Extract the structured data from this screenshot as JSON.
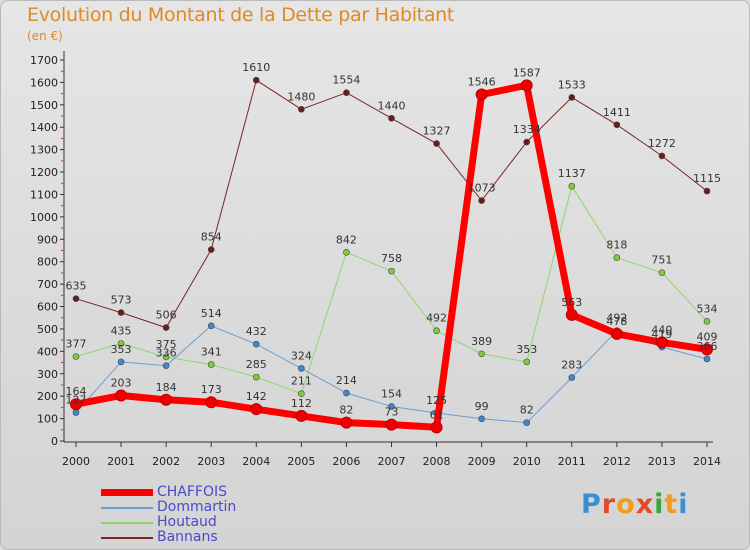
{
  "title": "Evolution du Montant de la Dette par Habitant",
  "unit": "(en €)",
  "logo": {
    "letters": [
      "P",
      "r",
      "o",
      "x",
      "i",
      "t",
      "i"
    ],
    "colors": [
      "#3a8fd4",
      "#e34a2a",
      "#f39c1a",
      "#e34a2a",
      "#3aa63a",
      "#f39c1a",
      "#3a8fd4"
    ]
  },
  "chart_data": {
    "type": "line",
    "title": "Evolution du Montant de la Dette par Habitant",
    "ylabel": "(en €)",
    "xlabel": "",
    "x": [
      "2000",
      "2001",
      "2002",
      "2003",
      "2004",
      "2005",
      "2006",
      "2007",
      "2008",
      "2009",
      "2010",
      "2011",
      "2012",
      "2013",
      "2014"
    ],
    "ylim": [
      0,
      1700
    ],
    "yticks": [
      0,
      100,
      200,
      300,
      400,
      500,
      600,
      700,
      800,
      900,
      1000,
      1100,
      1200,
      1300,
      1400,
      1500,
      1600,
      1700
    ],
    "grid": false,
    "legend_position": "bottom-left",
    "series": [
      {
        "name": "Bannans",
        "color": "#7a2424",
        "marker": "#6a1c1c",
        "width": 1,
        "values": [
          635,
          573,
          506,
          854,
          1610,
          1480,
          1554,
          1440,
          1327,
          1073,
          1334,
          1533,
          1411,
          1272,
          1115
        ]
      },
      {
        "name": "Houtaud",
        "color": "#8fd66a",
        "marker": "#7ccf3a",
        "width": 1,
        "values": [
          377,
          435,
          375,
          341,
          285,
          211,
          842,
          758,
          492,
          389,
          353,
          1137,
          818,
          751,
          534
        ]
      },
      {
        "name": "Dommartin",
        "color": "#6a9fcf",
        "marker": "#3f87d0",
        "width": 1,
        "values": [
          127,
          353,
          336,
          514,
          432,
          324,
          214,
          154,
          125,
          99,
          82,
          283,
          492,
          419,
          366
        ]
      },
      {
        "name": "CHAFFOIS",
        "color": "#ff0000",
        "marker": "#ee0000",
        "width": 7,
        "values": [
          164,
          203,
          184,
          173,
          142,
          112,
          82,
          73,
          61,
          1546,
          1587,
          563,
          478,
          440,
          409
        ]
      }
    ],
    "legend_order": [
      "CHAFFOIS",
      "Dommartin",
      "Houtaud",
      "Bannans"
    ]
  }
}
